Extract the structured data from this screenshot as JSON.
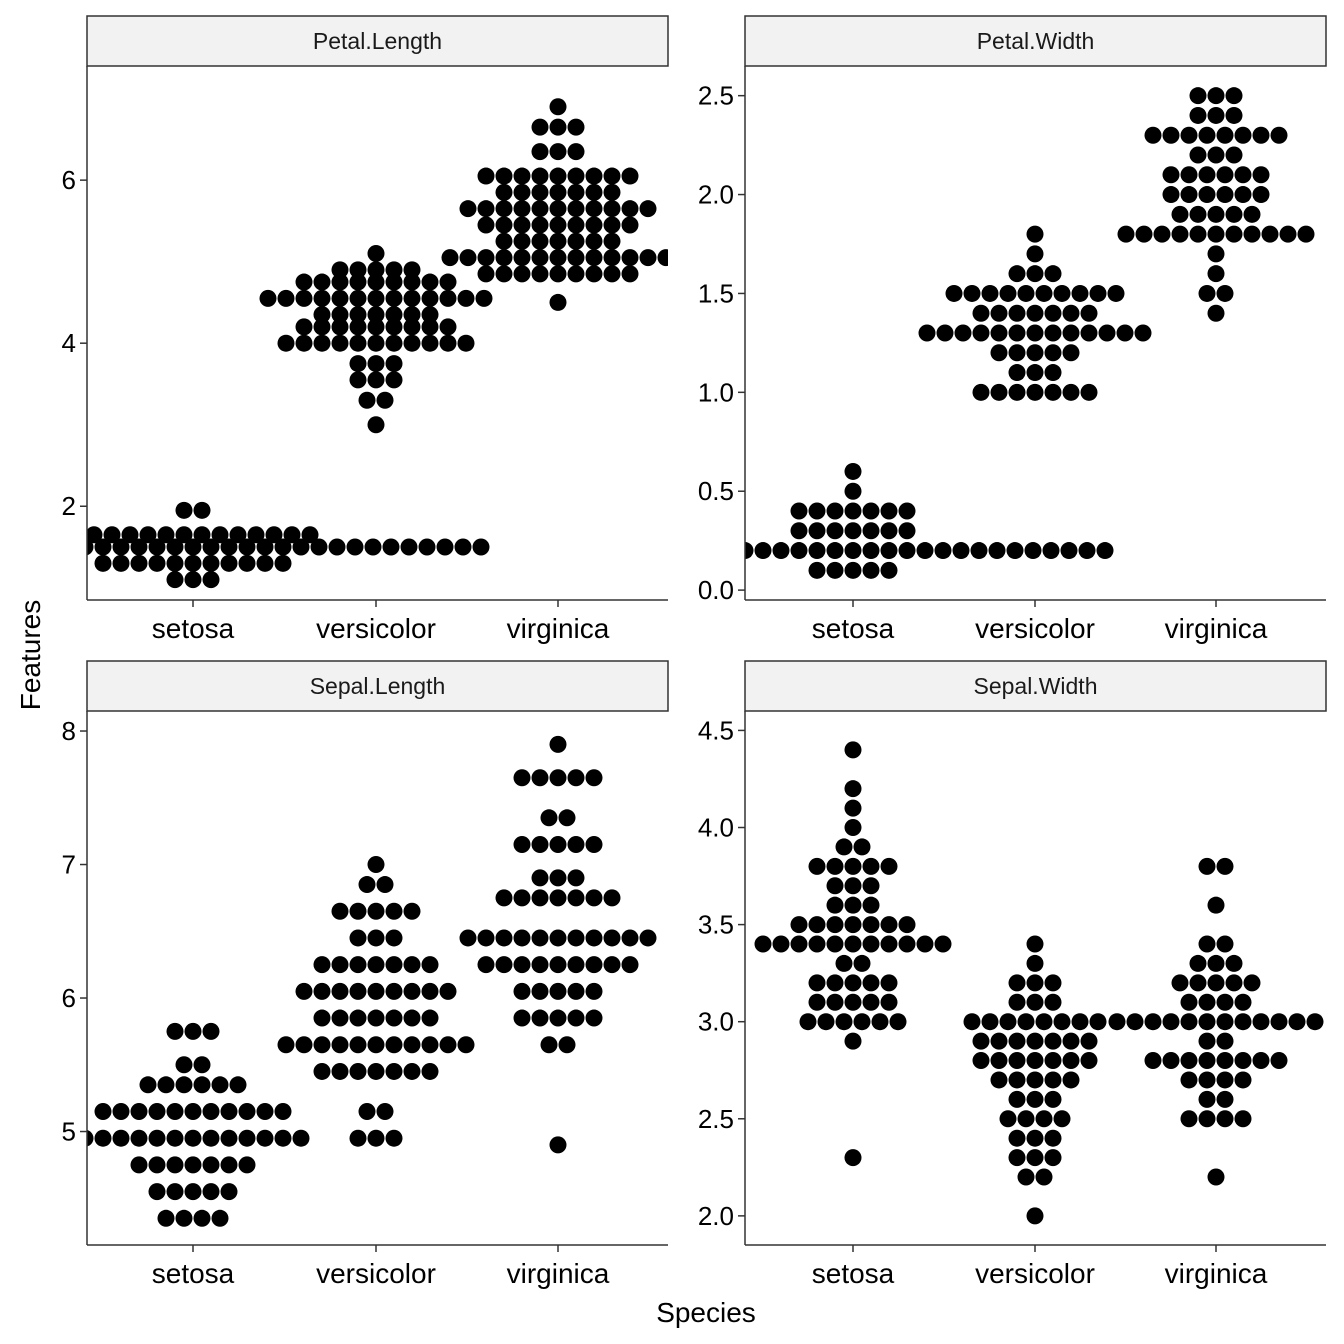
{
  "chart_data": {
    "type": "scatter",
    "subtype": "faceted dot plot",
    "xlabel": "Species",
    "ylabel": "Features",
    "categories": [
      "setosa",
      "versicolor",
      "virginica"
    ],
    "colors": {
      "dots": "#000000",
      "strip_fill": "#f2f2f2",
      "strip_border": "#333333",
      "axis": "#333333"
    },
    "grid": false,
    "facets": [
      {
        "title": "Petal.Length",
        "ylim": [
          0.85,
          7.4
        ],
        "yticks": [
          2,
          4,
          6
        ],
        "yticklabels": [
          "2",
          "4",
          "6"
        ],
        "groups": [
          {
            "category": "setosa",
            "rows": [
              [
                1.1,
                3
              ],
              [
                1.3,
                11
              ],
              [
                1.5,
                33
              ],
              [
                1.65,
                14
              ],
              [
                1.95,
                2
              ]
            ]
          },
          {
            "category": "versicolor",
            "rows": [
              [
                3.0,
                1
              ],
              [
                3.3,
                2
              ],
              [
                3.55,
                3
              ],
              [
                3.75,
                3
              ],
              [
                4.0,
                11
              ],
              [
                4.2,
                9
              ],
              [
                4.35,
                7
              ],
              [
                4.55,
                13
              ],
              [
                4.75,
                9
              ],
              [
                4.9,
                5
              ],
              [
                5.1,
                1
              ]
            ]
          },
          {
            "category": "virginica",
            "rows": [
              [
                4.5,
                1
              ],
              [
                4.85,
                9
              ],
              [
                5.05,
                13
              ],
              [
                5.25,
                7
              ],
              [
                5.45,
                9
              ],
              [
                5.65,
                11
              ],
              [
                5.85,
                7
              ],
              [
                6.05,
                9
              ],
              [
                6.35,
                3
              ],
              [
                6.65,
                3
              ],
              [
                6.9,
                1
              ]
            ]
          }
        ]
      },
      {
        "title": "Petal.Width",
        "ylim": [
          -0.05,
          2.65
        ],
        "yticks": [
          0,
          0.5,
          1,
          1.5,
          2,
          2.5
        ],
        "yticklabels": [
          "0.0",
          "0.5",
          "1.0",
          "1.5",
          "2.0",
          "2.5"
        ],
        "groups": [
          {
            "category": "setosa",
            "rows": [
              [
                0.1,
                5
              ],
              [
                0.2,
                29
              ],
              [
                0.3,
                7
              ],
              [
                0.4,
                7
              ],
              [
                0.5,
                1
              ],
              [
                0.6,
                1
              ]
            ]
          },
          {
            "category": "versicolor",
            "rows": [
              [
                1.0,
                7
              ],
              [
                1.1,
                3
              ],
              [
                1.2,
                5
              ],
              [
                1.3,
                13
              ],
              [
                1.4,
                7
              ],
              [
                1.5,
                10
              ],
              [
                1.6,
                3
              ],
              [
                1.7,
                1
              ],
              [
                1.8,
                1
              ]
            ]
          },
          {
            "category": "virginica",
            "rows": [
              [
                1.4,
                1
              ],
              [
                1.5,
                2
              ],
              [
                1.6,
                1
              ],
              [
                1.7,
                1
              ],
              [
                1.8,
                11
              ],
              [
                1.9,
                5
              ],
              [
                2.0,
                6
              ],
              [
                2.1,
                6
              ],
              [
                2.2,
                3
              ],
              [
                2.3,
                8
              ],
              [
                2.4,
                3
              ],
              [
                2.5,
                3
              ]
            ]
          }
        ]
      },
      {
        "title": "Sepal.Length",
        "ylim": [
          4.15,
          8.15
        ],
        "yticks": [
          5,
          6,
          7,
          8
        ],
        "yticklabels": [
          "5",
          "6",
          "7",
          "8"
        ],
        "groups": [
          {
            "category": "setosa",
            "rows": [
              [
                4.35,
                4
              ],
              [
                4.55,
                5
              ],
              [
                4.75,
                7
              ],
              [
                4.95,
                13
              ],
              [
                5.15,
                11
              ],
              [
                5.35,
                6
              ],
              [
                5.5,
                2
              ],
              [
                5.75,
                3
              ]
            ]
          },
          {
            "category": "versicolor",
            "rows": [
              [
                4.95,
                3
              ],
              [
                5.15,
                2
              ],
              [
                5.45,
                7
              ],
              [
                5.65,
                11
              ],
              [
                5.85,
                7
              ],
              [
                6.05,
                9
              ],
              [
                6.25,
                7
              ],
              [
                6.45,
                3
              ],
              [
                6.65,
                5
              ],
              [
                6.85,
                2
              ],
              [
                7.0,
                1
              ]
            ]
          },
          {
            "category": "virginica",
            "rows": [
              [
                4.9,
                1
              ],
              [
                5.65,
                2
              ],
              [
                5.85,
                5
              ],
              [
                6.05,
                5
              ],
              [
                6.25,
                9
              ],
              [
                6.45,
                11
              ],
              [
                6.75,
                7
              ],
              [
                6.9,
                3
              ],
              [
                7.15,
                5
              ],
              [
                7.35,
                2
              ],
              [
                7.65,
                5
              ],
              [
                7.9,
                1
              ]
            ]
          }
        ]
      },
      {
        "title": "Sepal.Width",
        "ylim": [
          1.85,
          4.6
        ],
        "yticks": [
          2,
          2.5,
          3,
          3.5,
          4,
          4.5
        ],
        "yticklabels": [
          "2.0",
          "2.5",
          "3.0",
          "3.5",
          "4.0",
          "4.5"
        ],
        "groups": [
          {
            "category": "setosa",
            "rows": [
              [
                2.3,
                1
              ],
              [
                2.9,
                1
              ],
              [
                3.0,
                6
              ],
              [
                3.1,
                5
              ],
              [
                3.2,
                5
              ],
              [
                3.3,
                2
              ],
              [
                3.4,
                11
              ],
              [
                3.5,
                7
              ],
              [
                3.6,
                3
              ],
              [
                3.7,
                3
              ],
              [
                3.8,
                5
              ],
              [
                3.9,
                2
              ],
              [
                4.0,
                1
              ],
              [
                4.1,
                1
              ],
              [
                4.2,
                1
              ],
              [
                4.4,
                1
              ]
            ]
          },
          {
            "category": "versicolor",
            "rows": [
              [
                2.0,
                1
              ],
              [
                2.2,
                2
              ],
              [
                2.3,
                3
              ],
              [
                2.4,
                3
              ],
              [
                2.5,
                4
              ],
              [
                2.6,
                3
              ],
              [
                2.7,
                5
              ],
              [
                2.8,
                7
              ],
              [
                2.9,
                7
              ],
              [
                3.0,
                8
              ],
              [
                3.1,
                3
              ],
              [
                3.2,
                3
              ],
              [
                3.3,
                1
              ],
              [
                3.4,
                1
              ]
            ]
          },
          {
            "category": "virginica",
            "rows": [
              [
                2.2,
                1
              ],
              [
                2.5,
                4
              ],
              [
                2.6,
                2
              ],
              [
                2.7,
                4
              ],
              [
                2.8,
                8
              ],
              [
                2.9,
                2
              ],
              [
                3.0,
                12
              ],
              [
                3.1,
                4
              ],
              [
                3.2,
                5
              ],
              [
                3.3,
                3
              ],
              [
                3.4,
                2
              ],
              [
                3.6,
                1
              ],
              [
                3.8,
                2
              ]
            ]
          }
        ]
      }
    ]
  }
}
